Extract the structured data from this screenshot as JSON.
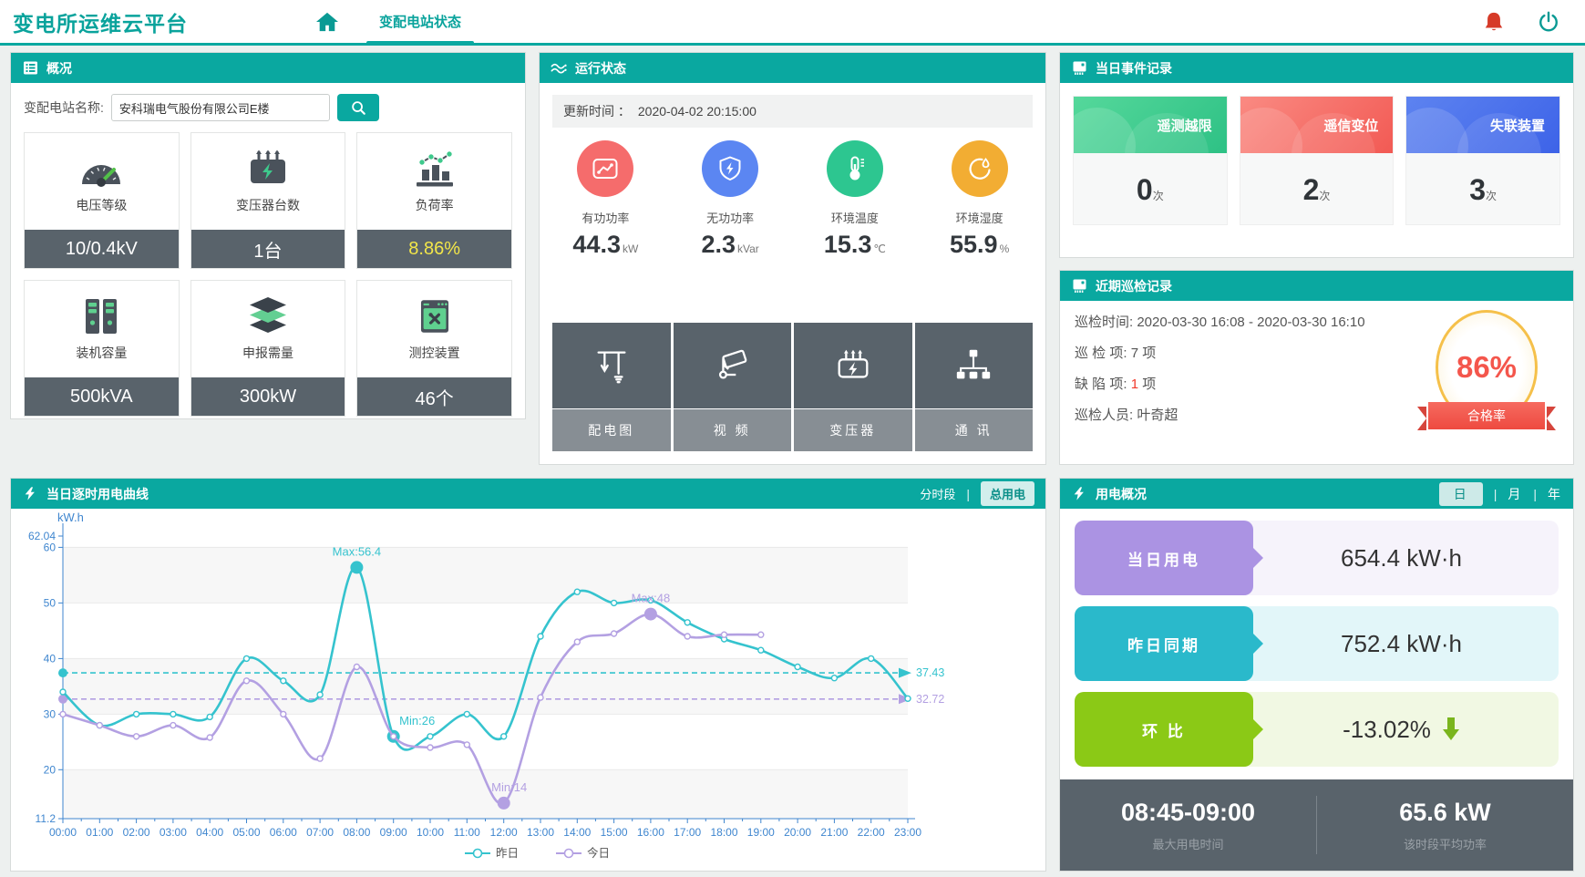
{
  "header": {
    "title": "变电所运维云平台",
    "tab": "变配电站状态"
  },
  "overview": {
    "title": "概况",
    "search_label": "变配电站名称:",
    "search_value": "安科瑞电气股份有限公司E楼",
    "cards": [
      {
        "icon": "gauge-icon",
        "label": "电压等级",
        "value": "10/0.4kV"
      },
      {
        "icon": "transformer-icon",
        "label": "变压器台数",
        "value": "1台"
      },
      {
        "icon": "load-rate-icon",
        "label": "负荷率",
        "value": "8.86%",
        "value_color": "#f2e649"
      },
      {
        "icon": "servers-icon",
        "label": "装机容量",
        "value": "500kVA"
      },
      {
        "icon": "layers-icon",
        "label": "申报需量",
        "value": "300kW"
      },
      {
        "icon": "device-icon",
        "label": "测控装置",
        "value": "46个"
      }
    ]
  },
  "status": {
    "title": "运行状态",
    "update_label": "更新时间 ：",
    "update_time": "2020-04-02 20:15:00",
    "metrics": [
      {
        "icon": "trend-chart-icon",
        "color": "#f56c6c",
        "label": "有功功率",
        "value": "44.3",
        "unit": "kW"
      },
      {
        "icon": "shield-bolt-icon",
        "color": "#5b86f2",
        "label": "无功功率",
        "value": "2.3",
        "unit": "kVar"
      },
      {
        "icon": "thermometer-icon",
        "color": "#2dc690",
        "label": "环境温度",
        "value": "15.3",
        "unit": "℃"
      },
      {
        "icon": "humidity-icon",
        "color": "#f2ad33",
        "label": "环境湿度",
        "value": "55.9",
        "unit": "%"
      }
    ],
    "buttons": [
      {
        "icon": "wiring-diagram-icon",
        "label": "配电图"
      },
      {
        "icon": "camera-icon",
        "label": "视 频"
      },
      {
        "icon": "transformer-box-icon",
        "label": "变压器"
      },
      {
        "icon": "network-icon",
        "label": "通 讯"
      }
    ]
  },
  "events": {
    "title": "当日事件记录",
    "unit": "次",
    "cards": [
      {
        "label": "遥测越限",
        "count": "0",
        "color_from": "#55d89b",
        "color_to": "#2ec185"
      },
      {
        "label": "遥信变位",
        "count": "2",
        "color_from": "#fa8a82",
        "color_to": "#f25a54"
      },
      {
        "label": "失联装置",
        "count": "3",
        "color_from": "#5d83f0",
        "color_to": "#3d63e8"
      }
    ]
  },
  "inspection": {
    "title": "近期巡检记录",
    "lines": [
      {
        "label": "巡检时间:",
        "value": "2020-03-30 16:08 - 2020-03-30 16:10"
      },
      {
        "label": "巡 检 项:",
        "value": "7 项"
      },
      {
        "label": "缺 陷 项:",
        "num": "1",
        "suffix": " 项"
      },
      {
        "label": "巡检人员:",
        "value": "叶奇超"
      }
    ],
    "badge": {
      "percent": "86%",
      "ribbon": "合格率"
    }
  },
  "chart_panel": {
    "title": "当日逐时用电曲线",
    "toggles": [
      "分时段",
      "总用电"
    ],
    "active_toggle": "总用电"
  },
  "chart_data": {
    "type": "line",
    "title": "当日逐时用电曲线",
    "ylabel": "kW.h",
    "x": [
      "00:00",
      "01:00",
      "02:00",
      "03:00",
      "04:00",
      "05:00",
      "06:00",
      "07:00",
      "08:00",
      "09:00",
      "10:00",
      "11:00",
      "12:00",
      "13:00",
      "14:00",
      "15:00",
      "16:00",
      "17:00",
      "18:00",
      "19:00",
      "20:00",
      "21:00",
      "22:00",
      "23:00"
    ],
    "ylim": [
      11.2,
      62.04
    ],
    "yticks": [
      11.2,
      20,
      30,
      40,
      50,
      60,
      62.04
    ],
    "gridlines": [
      20,
      30,
      40,
      50,
      60
    ],
    "bands": [
      [
        60,
        50
      ],
      [
        40,
        30
      ],
      [
        20,
        11.2
      ]
    ],
    "legend_position": "bottom",
    "series": [
      {
        "name": "昨日",
        "color": "#35c3ce",
        "values": [
          34,
          28,
          30,
          30,
          29.5,
          40,
          36,
          33.5,
          56.4,
          26,
          26,
          30,
          26,
          44,
          52,
          50,
          50.5,
          46.5,
          43.5,
          41.5,
          38.5,
          36.5,
          40,
          32.8
        ],
        "max": {
          "x": 8,
          "value": 56.4,
          "label": "Max:56.4"
        },
        "min": {
          "x": 9,
          "value": 26,
          "label": "Min:26"
        },
        "avg": 37.43
      },
      {
        "name": "今日",
        "color": "#b3a0e2",
        "values": [
          30,
          28,
          26,
          28,
          25.8,
          36,
          30,
          22,
          38.5,
          26,
          24,
          24.5,
          14,
          33,
          43,
          44.5,
          48,
          44,
          44.3,
          44.3
        ],
        "max": {
          "x": 16,
          "value": 48,
          "label": "Max:48"
        },
        "min": {
          "x": 12,
          "value": 14,
          "label": "Min:14"
        },
        "avg": 32.72
      }
    ]
  },
  "usage": {
    "title": "用电概况",
    "tabs": [
      "日",
      "月",
      "年"
    ],
    "active_tab": "日",
    "rows": [
      {
        "label": "当日用电",
        "value": "654.4 kW·h",
        "color": "#ab93e3",
        "bg": "#f6f3fb"
      },
      {
        "label": "昨日同期",
        "value": "752.4 kW·h",
        "color": "#2ab9cb",
        "bg": "#e2f6f9"
      },
      {
        "label": "环 比",
        "value": "-13.02%",
        "color": "#8bc916",
        "bg": "#f1f8e3",
        "arrow": "down",
        "arrow_color": "#7ab51d"
      }
    ],
    "footer": [
      {
        "value": "08:45-09:00",
        "label": "最大用电时间"
      },
      {
        "value": "65.6 kW",
        "label": "该时段平均功率"
      }
    ]
  }
}
